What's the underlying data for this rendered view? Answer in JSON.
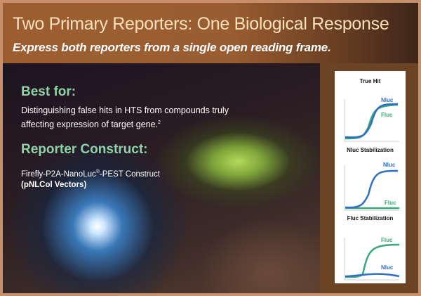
{
  "header": {
    "title": "Two Primary Reporters: One Biological Response",
    "subtitle": "Express both reporters from a single open reading frame."
  },
  "best_for": {
    "heading": "Best for:",
    "text": "Distinguishing false hits in HTS from compounds truly affecting expression of target gene.",
    "superscript": "2"
  },
  "reporter_construct": {
    "heading": "Reporter Construct:",
    "construct_prefix": "Firefly-P2A-NanoLuc",
    "registered": "®",
    "construct_suffix": "-PEST Construct",
    "vectors": "(pNLCol Vectors)"
  },
  "panel": {
    "charts": [
      {
        "title": "True Hit",
        "nluc_label": "Nluc",
        "fluc_label": "Fluc"
      },
      {
        "title": "Nluc Stabilization",
        "nluc_label": "Nluc",
        "fluc_label": "Fluc"
      },
      {
        "title": "Fluc Stabilization",
        "nluc_label": "Nluc",
        "fluc_label": "Fluc"
      }
    ]
  },
  "colors": {
    "nluc": "#2f6fc4",
    "fluc": "#3aa97a",
    "heading": "#8ed3a8",
    "title": "#fbe0bc"
  }
}
